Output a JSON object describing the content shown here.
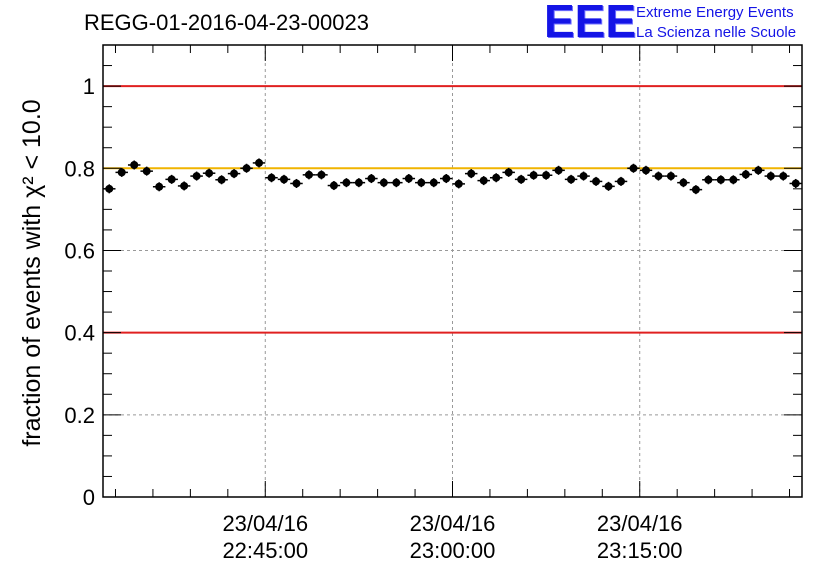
{
  "header": {
    "title": "REGG-01-2016-04-23-00023",
    "logo_mark": "EEE",
    "logo_line1": "Extreme Energy Events",
    "logo_line2": "La Scienza nelle Scuole"
  },
  "chart_data": {
    "type": "scatter",
    "title": "REGG-01-2016-04-23-00023",
    "ylabel": "fraction of events with χ² < 10.0",
    "xlabel": "",
    "ylim": [
      0,
      1.1
    ],
    "yticks": [
      "0",
      "0.2",
      "0.4",
      "0.6",
      "0.8",
      "1"
    ],
    "ytick_values": [
      0,
      0.2,
      0.4,
      0.6,
      0.8,
      1
    ],
    "xrange_minutes": [
      0,
      56
    ],
    "xticks": [
      {
        "minute": 13,
        "date": "23/04/16",
        "time": "22:45:00"
      },
      {
        "minute": 28,
        "date": "23/04/16",
        "time": "23:00:00"
      },
      {
        "minute": 43,
        "date": "23/04/16",
        "time": "23:15:00"
      }
    ],
    "grid": true,
    "reference_lines": [
      {
        "y": 1.0,
        "color": "#e02020"
      },
      {
        "y": 0.8,
        "color": "#f0b400"
      },
      {
        "y": 0.4,
        "color": "#e02020"
      }
    ],
    "series": [
      {
        "color": "#000000",
        "x": [
          0.5,
          1.5,
          2.5,
          3.5,
          4.5,
          5.5,
          6.5,
          7.5,
          8.5,
          9.5,
          10.5,
          11.5,
          12.5,
          13.5,
          14.5,
          15.5,
          16.5,
          17.5,
          18.5,
          19.5,
          20.5,
          21.5,
          22.5,
          23.5,
          24.5,
          25.5,
          26.5,
          27.5,
          28.5,
          29.5,
          30.5,
          31.5,
          32.5,
          33.5,
          34.5,
          35.5,
          36.5,
          37.5,
          38.5,
          39.5,
          40.5,
          41.5,
          42.5,
          43.5,
          44.5,
          45.5,
          46.5,
          47.5,
          48.5,
          49.5,
          50.5,
          51.5,
          52.5,
          53.5,
          54.5,
          55.5
        ],
        "y": [
          0.75,
          0.79,
          0.808,
          0.793,
          0.755,
          0.773,
          0.757,
          0.781,
          0.788,
          0.772,
          0.787,
          0.8,
          0.813,
          0.777,
          0.773,
          0.763,
          0.784,
          0.784,
          0.758,
          0.765,
          0.765,
          0.775,
          0.765,
          0.765,
          0.775,
          0.765,
          0.765,
          0.775,
          0.762,
          0.787,
          0.77,
          0.777,
          0.79,
          0.773,
          0.783,
          0.783,
          0.795,
          0.773,
          0.781,
          0.768,
          0.756,
          0.768,
          0.8,
          0.795,
          0.781,
          0.781,
          0.765,
          0.748,
          0.772,
          0.772,
          0.772,
          0.785,
          0.795,
          0.781,
          0.781,
          0.763
        ],
        "yerr": 0.011
      }
    ]
  }
}
